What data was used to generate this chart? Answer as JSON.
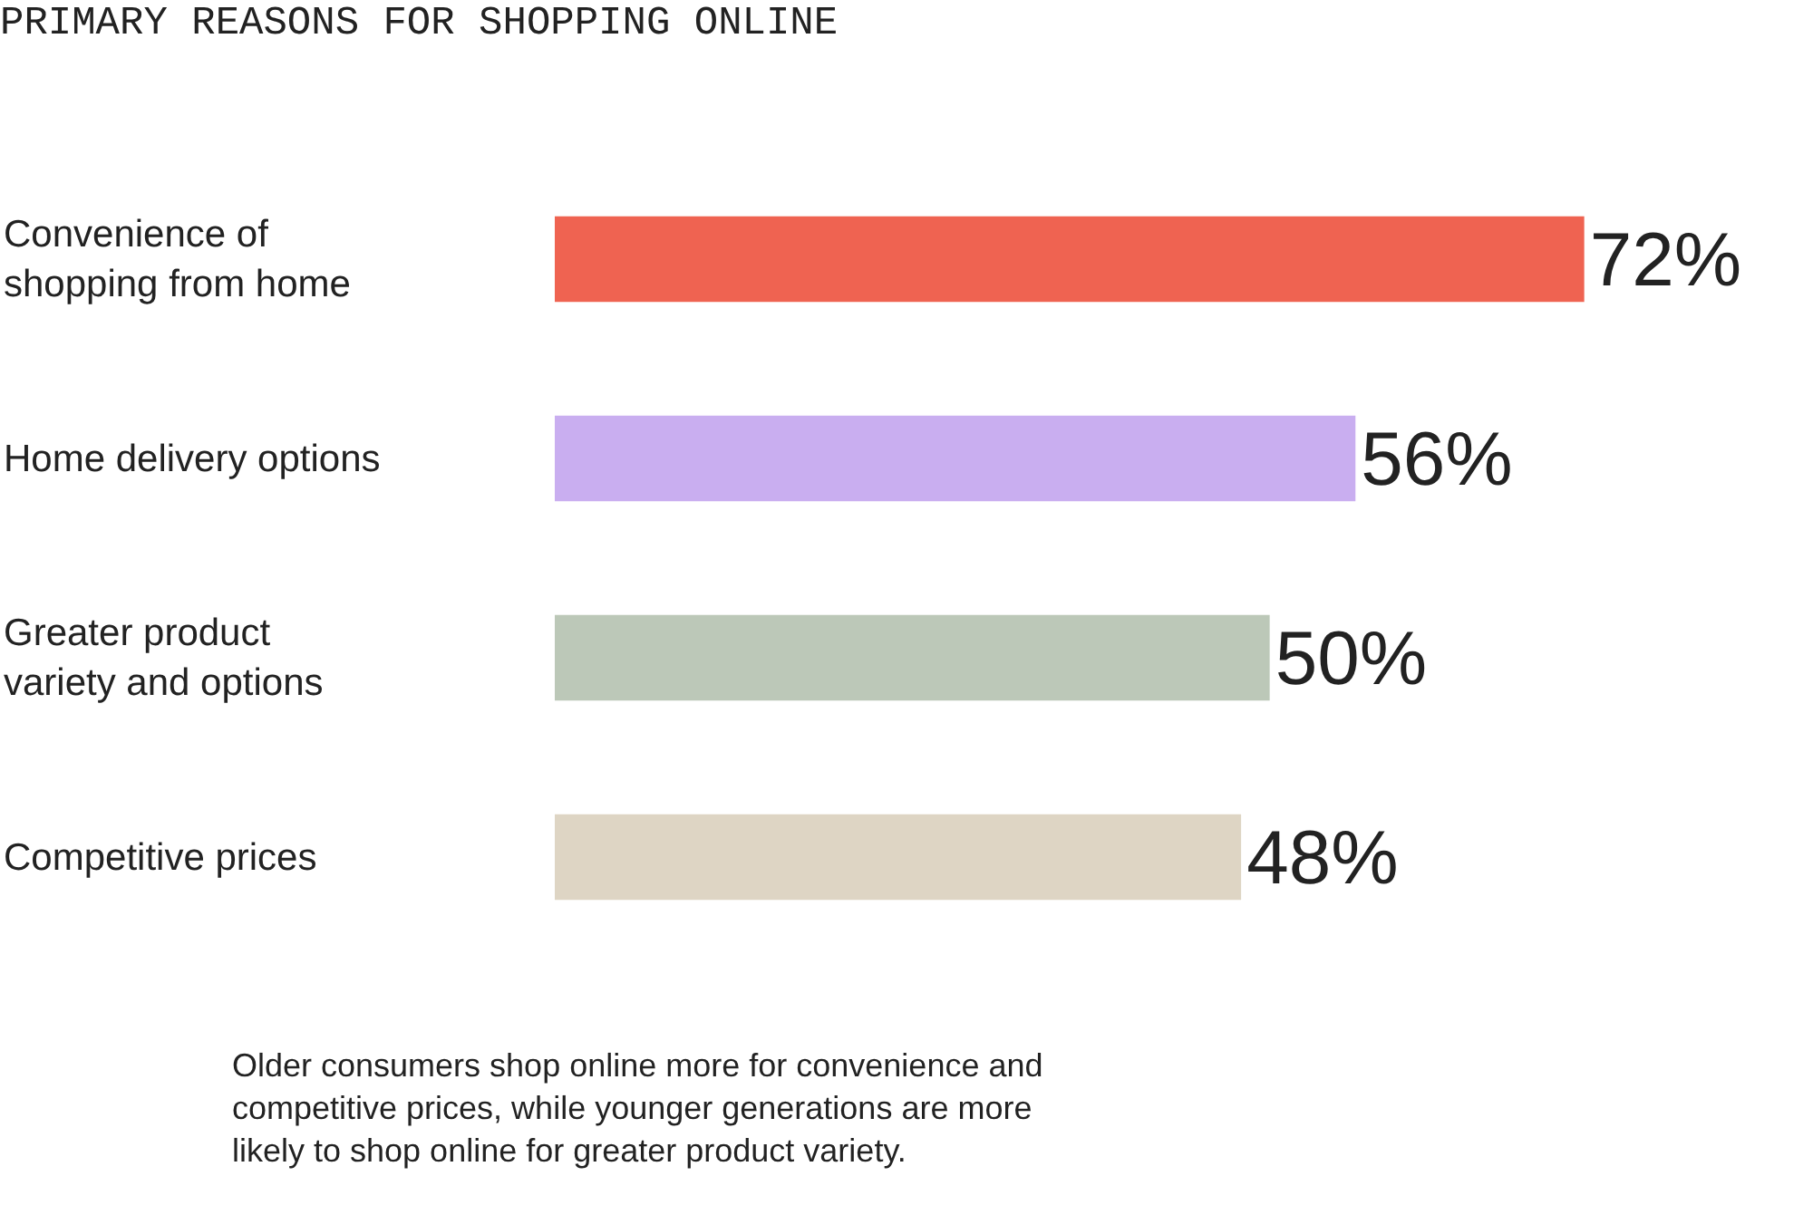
{
  "chart_data": {
    "type": "bar",
    "orientation": "horizontal",
    "title": "PRIMARY REASONS FOR SHOPPING ONLINE",
    "categories": [
      "Convenience of shopping from home",
      "Home delivery options",
      "Greater product variety and options",
      "Competitive prices"
    ],
    "values": [
      72,
      56,
      50,
      48
    ],
    "colors": [
      "#ef6351",
      "#c9aef0",
      "#bcc8b8",
      "#ded5c4"
    ],
    "value_labels": [
      "72%",
      "56%",
      "50%",
      "48%"
    ],
    "xlim": [
      0,
      88
    ],
    "tick_labels": false,
    "legend": false,
    "annotations": [
      "Older consumers shop online more for convenience and competitive prices, while younger generations are more likely to shop online for greater product variety."
    ]
  }
}
